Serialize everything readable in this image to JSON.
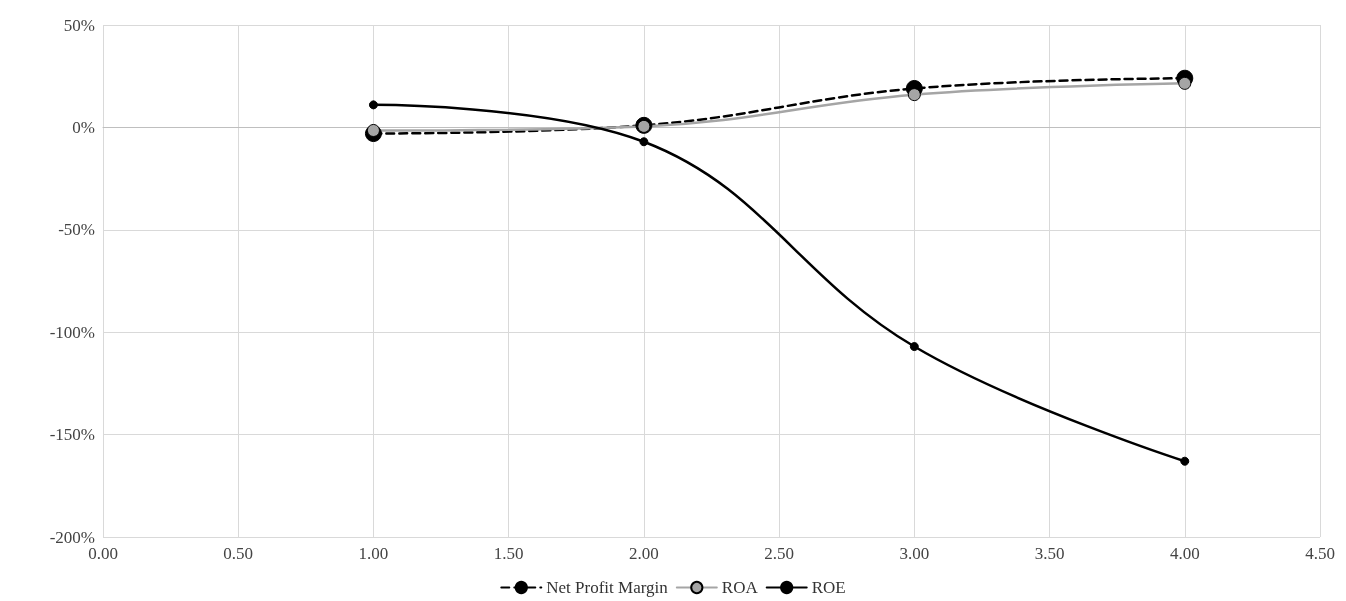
{
  "chart_data": {
    "type": "line",
    "x": [
      1,
      2,
      3,
      4
    ],
    "series": [
      {
        "name": "Net Profit Margin",
        "color": "#000000",
        "line_style": "dashed",
        "values": [
          -3,
          1,
          19,
          24
        ]
      },
      {
        "name": "ROA",
        "color": "#a5a5a5",
        "line_style": "solid",
        "values": [
          -1.5,
          0.5,
          16,
          21.5
        ]
      },
      {
        "name": "ROE",
        "color": "#000000",
        "line_style": "solid",
        "values": [
          11,
          -7,
          -107,
          -163
        ]
      }
    ],
    "xlim": [
      0,
      4.5
    ],
    "xticks": [
      {
        "value": 0,
        "label": "0.00"
      },
      {
        "value": 0.5,
        "label": "0.50"
      },
      {
        "value": 1,
        "label": "1.00"
      },
      {
        "value": 1.5,
        "label": "1.50"
      },
      {
        "value": 2,
        "label": "2.00"
      },
      {
        "value": 2.5,
        "label": "2.50"
      },
      {
        "value": 3,
        "label": "3.00"
      },
      {
        "value": 3.5,
        "label": "3.50"
      },
      {
        "value": 4,
        "label": "4.00"
      },
      {
        "value": 4.5,
        "label": "4.50"
      }
    ],
    "ylim": [
      -200,
      50
    ],
    "yticks": [
      {
        "value": -200,
        "label": "-200%"
      },
      {
        "value": -150,
        "label": "-150%"
      },
      {
        "value": -100,
        "label": "-100%"
      },
      {
        "value": -50,
        "label": "-50%"
      },
      {
        "value": 0,
        "label": "0%"
      },
      {
        "value": 50,
        "label": "50%"
      }
    ],
    "grid": true,
    "legend": "bottom",
    "marker": "circle"
  }
}
